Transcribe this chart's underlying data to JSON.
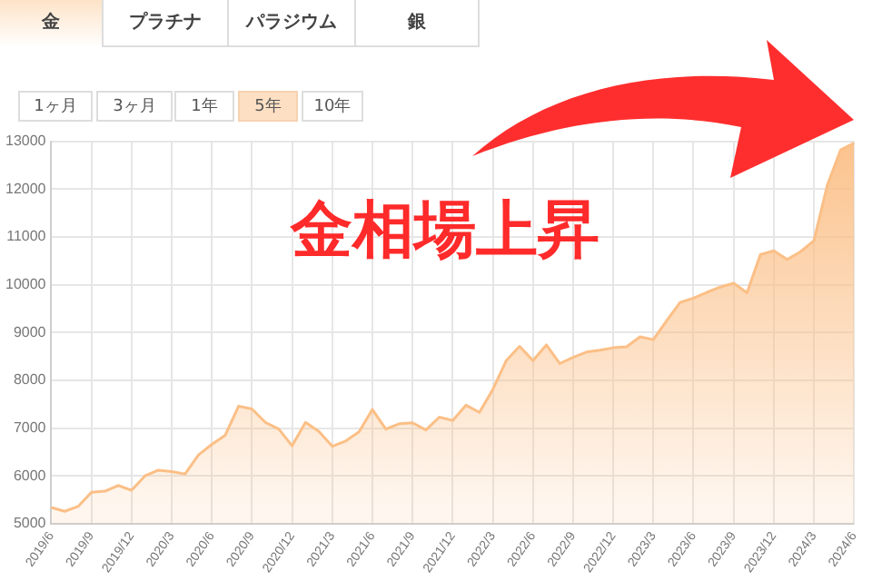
{
  "chart_data": {
    "type": "area",
    "categories": [
      "2019/6",
      null,
      null,
      "2019/9",
      null,
      null,
      "2019/12",
      null,
      null,
      "2020/3",
      null,
      null,
      "2020/6",
      null,
      null,
      "2020/9",
      null,
      null,
      "2020/12",
      null,
      null,
      "2021/3",
      null,
      null,
      "2021/6",
      null,
      null,
      "2021/9",
      null,
      null,
      "2021/12",
      null,
      null,
      "2022/3",
      null,
      null,
      "2022/6",
      null,
      null,
      "2022/9",
      null,
      null,
      "2022/12",
      null,
      null,
      "2023/3",
      null,
      null,
      "2023/6",
      null,
      null,
      "2023/9",
      null,
      null,
      "2023/12",
      null,
      null,
      "2024/3",
      null,
      null,
      "2024/6"
    ],
    "series": [
      {
        "color": "#fbbf86",
        "values": [
          5340,
          5260,
          5360,
          5660,
          5680,
          5800,
          5700,
          6000,
          6120,
          6090,
          6040,
          6440,
          6660,
          6850,
          7460,
          7400,
          7120,
          6980,
          6630,
          7120,
          6930,
          6620,
          6730,
          6920,
          7390,
          6980,
          7090,
          7110,
          6960,
          7230,
          7160,
          7480,
          7330,
          7810,
          8410,
          8710,
          8410,
          8740,
          8350,
          8480,
          8590,
          8630,
          8680,
          8700,
          8910,
          8850,
          9250,
          9630,
          9720,
          9840,
          9950,
          10030,
          9830,
          10630,
          10710,
          10530,
          10690,
          10920,
          12080,
          12820,
          12960
        ]
      }
    ],
    "ylim": [
      5000,
      13000
    ],
    "yticks": [
      5000,
      6000,
      7000,
      8000,
      9000,
      10000,
      11000,
      12000,
      13000
    ],
    "grid": true,
    "legend": false,
    "marker": "none",
    "annotations": [
      "金",
      "プラチナ",
      "パラジウム",
      "銀",
      "1ヶ月",
      "3ヶ月",
      "1年",
      "5年",
      "10年",
      "金相場上昇"
    ]
  }
}
